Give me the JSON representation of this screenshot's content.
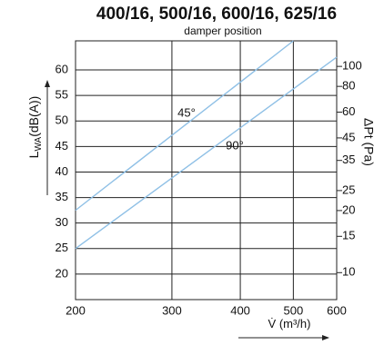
{
  "chart_data": {
    "type": "line",
    "title": "400/16, 500/16, 600/16, 625/16",
    "subtitle": "damper position",
    "y_label": {
      "main": "L",
      "sub": "WA",
      "unit": "(dB(A))"
    },
    "y2_label": "ΔPt (Pa)",
    "x_label": {
      "main": "V̇",
      "unit": "(m³/h)"
    },
    "x_scale": "log",
    "xlim": [
      200,
      600
    ],
    "xticks": [
      200,
      300,
      400,
      500,
      600
    ],
    "ylim": [
      15,
      65.7
    ],
    "yticks": [
      20,
      25,
      30,
      35,
      40,
      45,
      50,
      55,
      60
    ],
    "y2_scale": "log",
    "y2lim": [
      7.4,
      133
    ],
    "y2ticks": [
      10,
      15,
      20,
      25,
      35,
      45,
      60,
      80,
      100
    ],
    "grid": true,
    "series": [
      {
        "name": "45°",
        "color": "#8fc0e6",
        "x": [
          200,
          500
        ],
        "values": [
          32.5,
          65.7
        ]
      },
      {
        "name": "90°",
        "color": "#8fc0e6",
        "x": [
          200,
          600
        ],
        "values": [
          25,
          62.5
        ]
      }
    ]
  }
}
